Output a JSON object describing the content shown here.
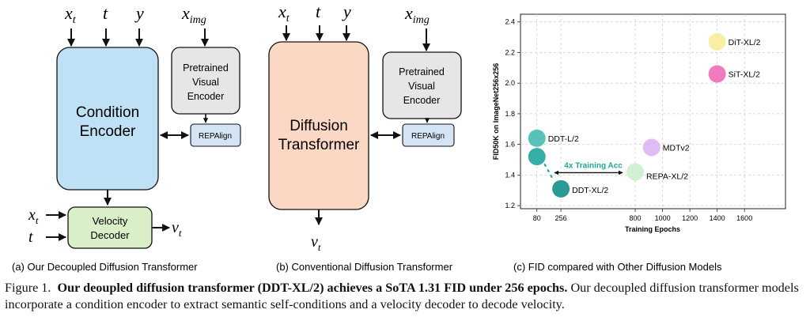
{
  "panel_a": {
    "inputs_top": [
      "x",
      "t",
      "y"
    ],
    "inputs_top_sub": [
      "t",
      "",
      ""
    ],
    "img_input": "x",
    "img_input_sub": "img",
    "condition_encoder": [
      "Condition",
      "Encoder"
    ],
    "pretrained_encoder": [
      "Pretrained",
      "Visual",
      "Encoder"
    ],
    "repa": "REPAlign",
    "velocity_decoder": [
      "Velocity",
      "Decoder"
    ],
    "decoder_inputs": [
      "x",
      "t"
    ],
    "decoder_inputs_sub": [
      "t",
      ""
    ],
    "decoder_output": "v",
    "decoder_output_sub": "t",
    "caption": "(a) Our Decoupled Diffusion Transformer"
  },
  "panel_b": {
    "inputs_top": [
      "x",
      "t",
      "y"
    ],
    "inputs_top_sub": [
      "t",
      "",
      ""
    ],
    "img_input": "x",
    "img_input_sub": "img",
    "diffusion_transformer": [
      "Diffusion",
      "Transformer"
    ],
    "pretrained_encoder": [
      "Pretrained",
      "Visual",
      "Encoder"
    ],
    "repa": "REPAlign",
    "output": "v",
    "output_sub": "t",
    "caption": "(b) Conventional Diffusion Transformer"
  },
  "panel_c": {
    "caption": "(c) FID compared with Other Diffusion Models",
    "annotation": "4x Training Acc"
  },
  "chart_data": {
    "type": "scatter",
    "xlabel": "Training Epochs",
    "ylabel": "FID50K on ImageNet256x256",
    "xlim": [
      -40,
      1900
    ],
    "ylim": [
      1.18,
      2.45
    ],
    "x_ticks": [
      80,
      256,
      800,
      1000,
      1200,
      1400,
      1600
    ],
    "y_ticks": [
      1.2,
      1.4,
      1.6,
      1.8,
      2.0,
      2.2,
      2.4
    ],
    "grid": true,
    "points": [
      {
        "label": "DiT-XL/2",
        "x": 1400,
        "y": 2.27,
        "color": "#f7ee9b"
      },
      {
        "label": "SiT-XL/2",
        "x": 1400,
        "y": 2.06,
        "color": "#ef6fb6"
      },
      {
        "label": "MDTv2",
        "x": 920,
        "y": 1.58,
        "color": "#dcb6f2"
      },
      {
        "label": "REPA-XL/2",
        "x": 800,
        "y": 1.42,
        "color": "#cdefd0"
      },
      {
        "label": "DDT-L/2",
        "x": 80,
        "y": 1.64,
        "color": "#49bcb4"
      },
      {
        "label": "",
        "x": 80,
        "y": 1.52,
        "color": "#24a79f"
      },
      {
        "label": "DDT-XL/2",
        "x": 256,
        "y": 1.31,
        "color": "#15928b"
      }
    ],
    "accent_color": "#1fa6a0"
  },
  "caption": {
    "prefix": "Figure 1.",
    "bold": "Our deoupled diffusion transformer (DDT-XL/2) achieves a SoTA 1.31 FID under 256 epochs.",
    "rest": "Our decoupled diffusion transformer models incorporate a condition encoder to extract semantic self-conditions and a velocity decoder to decode velocity."
  }
}
